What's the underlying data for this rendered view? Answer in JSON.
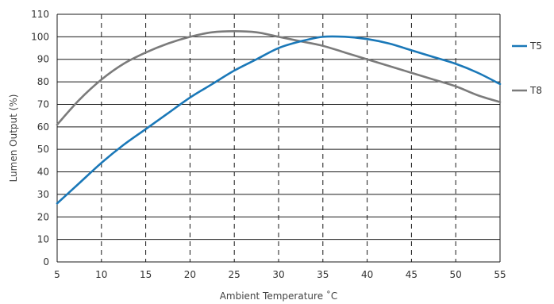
{
  "chart_data": {
    "type": "line",
    "xlabel": "Ambient Temperature ˚C",
    "ylabel": "Lumen Output (%)",
    "xlim": [
      5,
      55
    ],
    "ylim": [
      0,
      110
    ],
    "x_ticks": [
      5,
      10,
      15,
      20,
      25,
      30,
      35,
      40,
      45,
      50,
      55
    ],
    "y_ticks": [
      0,
      10,
      20,
      30,
      40,
      50,
      60,
      70,
      80,
      90,
      100,
      110
    ],
    "grid": {
      "horizontal": "solid",
      "vertical": "dashed"
    },
    "legend_position": "right",
    "series": [
      {
        "name": "T5",
        "color": "#1a78b8",
        "x": [
          5,
          7.5,
          10,
          12.5,
          15,
          17.5,
          20,
          22.5,
          25,
          27.5,
          30,
          32.5,
          35,
          37.5,
          40,
          42.5,
          45,
          47.5,
          50,
          52.5,
          55
        ],
        "y": [
          26,
          35,
          44,
          52,
          59,
          66,
          73,
          79,
          85,
          90,
          95,
          98,
          100,
          100,
          99,
          97,
          94,
          91,
          88,
          84,
          79
        ]
      },
      {
        "name": "T8",
        "color": "#7b7b7b",
        "x": [
          5,
          7.5,
          10,
          12.5,
          15,
          17.5,
          20,
          22.5,
          25,
          27.5,
          30,
          32.5,
          35,
          37.5,
          40,
          42.5,
          45,
          47.5,
          50,
          52.5,
          55
        ],
        "y": [
          61,
          72,
          81,
          88,
          93,
          97,
          100,
          102,
          102.5,
          102,
          100,
          98,
          96,
          93,
          90,
          87,
          84,
          81,
          78,
          74,
          71
        ]
      }
    ]
  }
}
